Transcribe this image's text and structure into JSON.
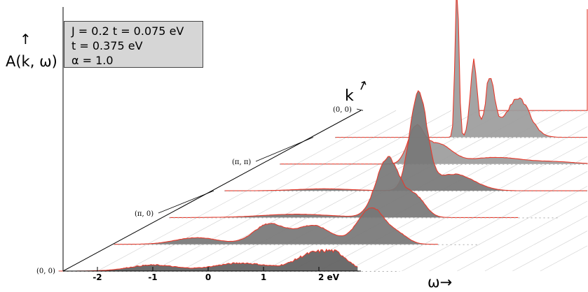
{
  "info_box": {
    "line1": "J = 0.2 t = 0.075 eV",
    "line2": "t = 0.375 eV",
    "line3": "α = 1.0"
  },
  "axis_labels": {
    "y": "A(k, ω)",
    "y_arrow": "↑",
    "k": "k",
    "k_arrow": "↗",
    "omega": "ω→"
  },
  "x_ticks": [
    {
      "value": -2,
      "label": "-2"
    },
    {
      "value": -1,
      "label": "-1"
    },
    {
      "value": 0,
      "label": "0"
    },
    {
      "value": 1,
      "label": "1"
    },
    {
      "value": 2,
      "label": "2 eV"
    }
  ],
  "k_points": [
    "(0, 0)",
    "(π, 0)",
    "(π, π)",
    "(0, 0)"
  ],
  "colors": {
    "curve": "#e8392b",
    "fill_back": "#9c9c9c",
    "fill_mid": "#777777",
    "fill_front": "#5f5f5f",
    "box_bg": "#d6d6d6"
  },
  "chart_data": {
    "type": "area",
    "subtype": "waterfall",
    "xlabel": "ω",
    "ylabel": "A(k, ω)",
    "xlim": [
      -2.7,
      2.7
    ],
    "x_unit": "eV",
    "depth_axis": "k",
    "series": [
      {
        "k_index": 0,
        "peaks": [
          {
            "x": -1.0,
            "height": 0.09,
            "width": 0.6
          },
          {
            "x": 0.6,
            "height": 0.12,
            "width": 0.7
          },
          {
            "x": 1.9,
            "height": 0.26,
            "width": 0.45
          },
          {
            "x": 2.35,
            "height": 0.18,
            "width": 0.3
          }
        ]
      },
      {
        "k_index": 1,
        "peaks": [
          {
            "x": -1.1,
            "height": 0.1,
            "width": 0.55
          },
          {
            "x": 0.2,
            "height": 0.3,
            "width": 0.4
          },
          {
            "x": 1.0,
            "height": 0.28,
            "width": 0.45
          },
          {
            "x": 2.05,
            "height": 0.55,
            "width": 0.35
          },
          {
            "x": 2.55,
            "height": 0.12,
            "width": 0.25
          }
        ]
      },
      {
        "k_index": 2,
        "peaks": [
          {
            "x": -0.2,
            "height": 0.05,
            "width": 0.9
          },
          {
            "x": 1.45,
            "height": 0.9,
            "width": 0.3
          },
          {
            "x": 1.95,
            "height": 0.3,
            "width": 0.25
          }
        ]
      },
      {
        "k_index": 3,
        "peaks": [
          {
            "x": -0.6,
            "height": 0.03,
            "width": 0.7
          },
          {
            "x": 1.1,
            "height": 1.45,
            "width": 0.22
          },
          {
            "x": 1.75,
            "height": 0.25,
            "width": 0.5
          }
        ]
      },
      {
        "k_index": 4,
        "peaks": [
          {
            "x": 0.15,
            "height": 0.5,
            "width": 0.2
          },
          {
            "x": 0.55,
            "height": 0.3,
            "width": 0.35
          },
          {
            "x": 1.6,
            "height": 0.1,
            "width": 0.7
          },
          {
            "x": 2.7,
            "height": 0.03,
            "width": 0.5
          }
        ]
      },
      {
        "k_index": 5,
        "peaks": [
          {
            "x": 0.0,
            "height": 2.2,
            "width": 0.05
          },
          {
            "x": 0.3,
            "height": 1.1,
            "width": 0.09
          },
          {
            "x": 0.6,
            "height": 0.9,
            "width": 0.12
          },
          {
            "x": 1.1,
            "height": 0.6,
            "width": 0.3
          }
        ]
      },
      {
        "k_index": 6,
        "peaks": [
          {
            "x": 3.1,
            "height": 1.5,
            "width": 0.55
          }
        ]
      }
    ]
  }
}
